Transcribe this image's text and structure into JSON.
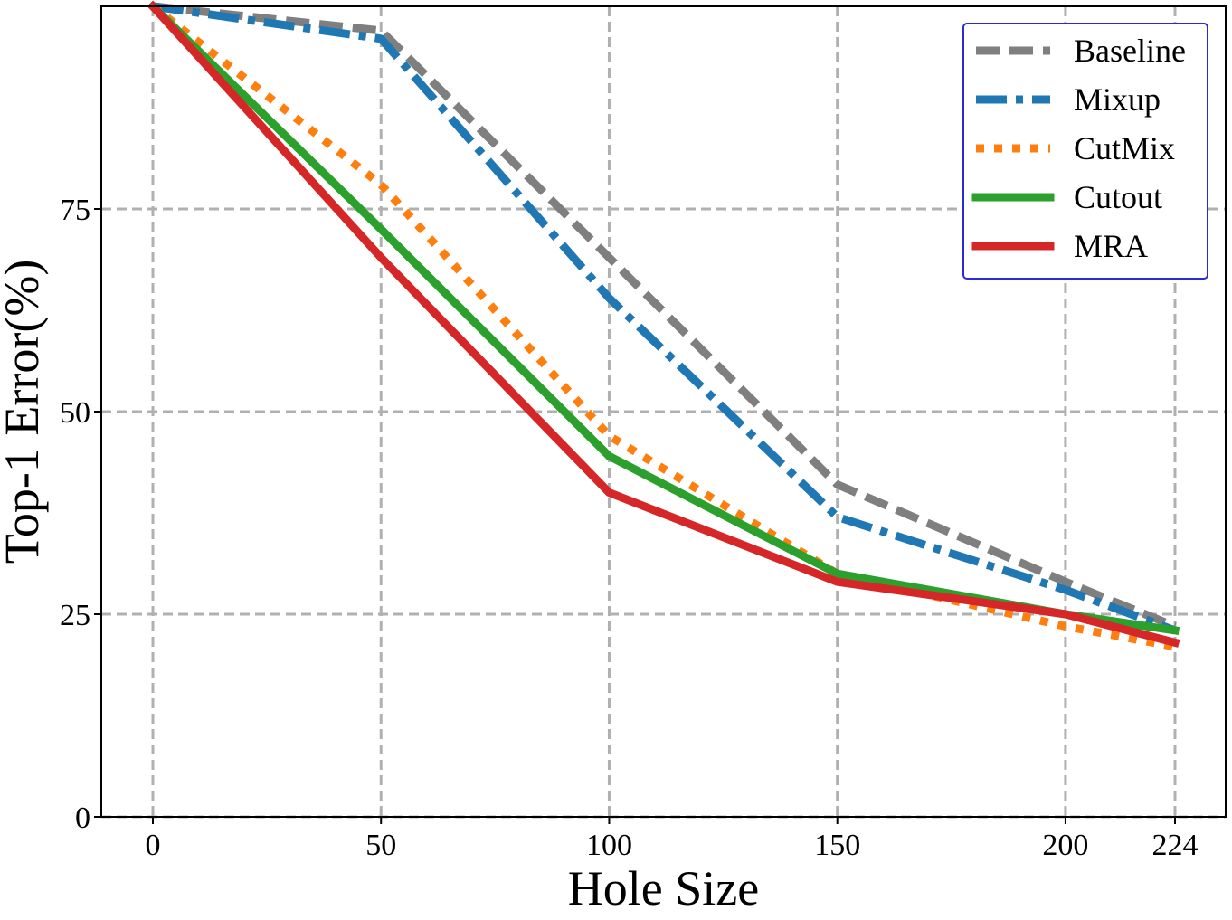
{
  "chart_data": {
    "type": "line",
    "title": "",
    "xlabel": "Hole Size",
    "ylabel": "Top-1 Error(%)",
    "x": [
      0,
      50,
      100,
      150,
      200,
      224
    ],
    "x_tick_labels": [
      "0",
      "50",
      "100",
      "150",
      "200",
      "224"
    ],
    "y_ticks": [
      0,
      25,
      50,
      75
    ],
    "y_tick_labels": [
      "0",
      "25",
      "50",
      "75"
    ],
    "ylim": [
      0,
      100
    ],
    "grid": true,
    "legend_position": "top-right",
    "series": [
      {
        "name": "Baseline",
        "values": [
          100,
          97,
          69,
          41,
          29,
          23.5
        ],
        "color": "#7f7f7f",
        "style": "dashed"
      },
      {
        "name": "Mixup",
        "values": [
          100,
          96,
          64,
          37,
          28,
          23
        ],
        "color": "#1f77b4",
        "style": "dashdot"
      },
      {
        "name": "CutMix",
        "values": [
          100,
          78,
          47,
          30,
          23.5,
          21
        ],
        "color": "#ff7f0e",
        "style": "dotted"
      },
      {
        "name": "Cutout",
        "values": [
          100,
          72.5,
          44.5,
          30,
          25,
          23
        ],
        "color": "#2ca02c",
        "style": "solid"
      },
      {
        "name": "MRA",
        "values": [
          100,
          69,
          40,
          29,
          25,
          21.5
        ],
        "color": "#d62728",
        "style": "solid"
      }
    ]
  }
}
